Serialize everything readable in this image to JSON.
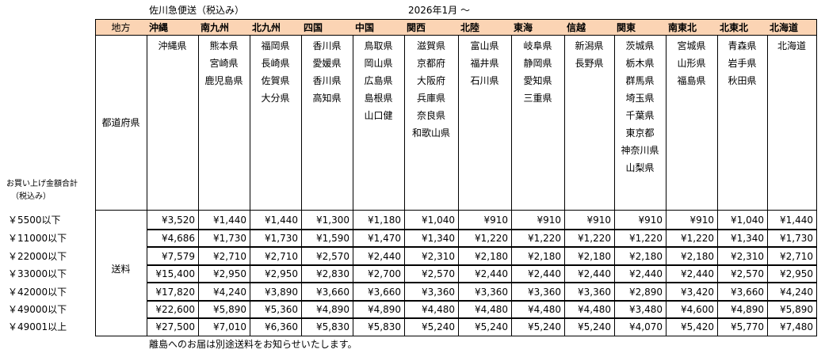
{
  "header": {
    "title": "佐川急便送（税込み）",
    "date": "2026年1月 ～"
  },
  "table": {
    "corner": "地方",
    "regions": [
      "沖縄",
      "南九州",
      "北九州",
      "四国",
      "中国",
      "関西",
      "北陸",
      "東海",
      "信越",
      "関東",
      "南東北",
      "北東北",
      "北海道"
    ],
    "prefecture_label": "都道府県",
    "prefectures": [
      [
        "沖縄県"
      ],
      [
        "熊本県",
        "宮崎県",
        "鹿児島県"
      ],
      [
        "福岡県",
        "長崎県",
        "佐賀県",
        "大分県"
      ],
      [
        "香川県",
        "愛媛県",
        "香川県",
        "高知県"
      ],
      [
        "鳥取県",
        "岡山県",
        "広島県",
        "島根県",
        "山口健"
      ],
      [
        "滋賀県",
        "京都府",
        "大阪府",
        "兵庫県",
        "奈良県",
        "和歌山県"
      ],
      [
        "富山県",
        "福井県",
        "石川県"
      ],
      [
        "岐阜県",
        "静岡県",
        "愛知県",
        "三重県"
      ],
      [
        "新潟県",
        "長野県"
      ],
      [
        "茨城県",
        "栃木県",
        "群馬県",
        "埼玉県",
        "千葉県",
        "東京都",
        "神奈川県",
        "山梨県"
      ],
      [
        "宮城県",
        "山形県",
        "福島県"
      ],
      [
        "青森県",
        "岩手県",
        "秋田県"
      ],
      [
        "北海道"
      ]
    ],
    "amount_label": [
      "お買い上げ金額合計",
      "（税込み）"
    ],
    "fee_label": "送料",
    "amounts": [
      "￥5500以下",
      "￥11000以下",
      "￥22000以下",
      "￥33000以下",
      "￥42000以下",
      "￥49000以下",
      "￥49001以上"
    ],
    "fees": [
      [
        "¥3,520",
        "¥1,440",
        "¥1,440",
        "¥1,300",
        "¥1,180",
        "¥1,040",
        "¥910",
        "¥910",
        "¥910",
        "¥910",
        "¥910",
        "¥1,040",
        "¥1,440"
      ],
      [
        "¥4,686",
        "¥1,730",
        "¥1,730",
        "¥1,590",
        "¥1,470",
        "¥1,340",
        "¥1,220",
        "¥1,220",
        "¥1,220",
        "¥1,220",
        "¥1,220",
        "¥1,340",
        "¥1,730"
      ],
      [
        "¥7,579",
        "¥2,710",
        "¥2,710",
        "¥2,570",
        "¥2,440",
        "¥2,310",
        "¥2,180",
        "¥2,180",
        "¥2,180",
        "¥2,180",
        "¥2,180",
        "¥2,310",
        "¥2,710"
      ],
      [
        "¥15,400",
        "¥2,950",
        "¥2,950",
        "¥2,830",
        "¥2,700",
        "¥2,570",
        "¥2,440",
        "¥2,440",
        "¥2,440",
        "¥2,440",
        "¥2,440",
        "¥2,570",
        "¥2,950"
      ],
      [
        "¥17,820",
        "¥4,240",
        "¥3,890",
        "¥3,660",
        "¥3,660",
        "¥3,360",
        "¥3,360",
        "¥3,360",
        "¥3,360",
        "¥2,890",
        "¥3,420",
        "¥3,660",
        "¥4,240"
      ],
      [
        "¥22,600",
        "¥5,890",
        "¥5,360",
        "¥4,890",
        "¥4,890",
        "¥4,480",
        "¥4,480",
        "¥4,480",
        "¥4,480",
        "¥3,480",
        "¥4,600",
        "¥4,890",
        "¥5,890"
      ],
      [
        "¥27,500",
        "¥7,010",
        "¥6,360",
        "¥5,830",
        "¥5,830",
        "¥5,240",
        "¥5,240",
        "¥5,240",
        "¥5,240",
        "¥4,070",
        "¥5,420",
        "¥5,770",
        "¥7,480"
      ]
    ]
  },
  "footer": "離島へのお届は別途送料をお知らせいたします。"
}
